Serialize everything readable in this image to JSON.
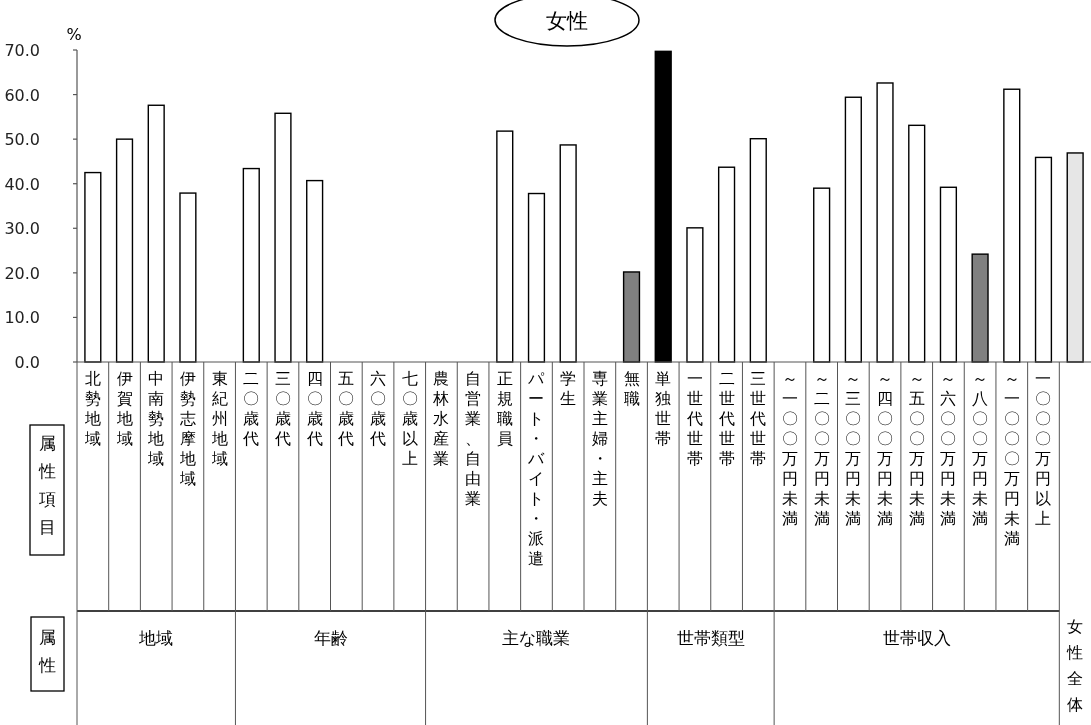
{
  "chart_data": {
    "type": "bar",
    "title": "女性",
    "ylabel": "%",
    "categories": [
      "北勢地域",
      "伊賀地域",
      "中南勢地域",
      "伊勢志摩地域",
      "東紀州地域",
      "二〇歳代",
      "三〇歳代",
      "四〇歳代",
      "五〇歳代",
      "六〇歳代",
      "七〇歳以上",
      "農林水産業",
      "自営業、自由業",
      "正規職員",
      "パート・バイト・派遣",
      "学生",
      "専業主婦・主夫",
      "無職",
      "単独世帯",
      "一世代世帯",
      "二世代世帯",
      "三世代世帯",
      "～一〇〇万円未満",
      "～二〇〇万円未満",
      "～三〇〇万円未満",
      "～四〇〇万円未満",
      "～五〇〇万円未満",
      "～六〇〇万円未満",
      "～八〇〇万円未満",
      "～一〇〇〇万円未満",
      "一〇〇〇万円以上",
      null
    ],
    "values": [
      42.5,
      50.0,
      57.6,
      37.9,
      null,
      43.4,
      55.8,
      40.7,
      null,
      null,
      null,
      null,
      null,
      51.8,
      37.8,
      48.7,
      null,
      20.2,
      69.7,
      30.1,
      43.7,
      50.1,
      null,
      39.0,
      59.4,
      62.6,
      53.1,
      39.2,
      24.2,
      61.2,
      45.9,
      46.9
    ],
    "colors": [
      "#ffffff",
      "#ffffff",
      "#ffffff",
      "#ffffff",
      "#ffffff",
      "#ffffff",
      "#ffffff",
      "#ffffff",
      "#ffffff",
      "#ffffff",
      "#ffffff",
      "#ffffff",
      "#ffffff",
      "#ffffff",
      "#ffffff",
      "#ffffff",
      "#ffffff",
      "#808080",
      "#000000",
      "#ffffff",
      "#ffffff",
      "#ffffff",
      "#ffffff",
      "#ffffff",
      "#ffffff",
      "#ffffff",
      "#ffffff",
      "#ffffff",
      "#808080",
      "#ffffff",
      "#ffffff",
      "#e6e6e6"
    ],
    "ylim": [
      0,
      70
    ],
    "yticks": [
      {
        "value": 0,
        "label": "0.0"
      },
      {
        "value": 10,
        "label": "10.0"
      },
      {
        "value": 20,
        "label": "20.0"
      },
      {
        "value": 30,
        "label": "30.0"
      },
      {
        "value": 40,
        "label": "40.0"
      },
      {
        "value": 50,
        "label": "50.0"
      },
      {
        "value": 60,
        "label": "60.0"
      },
      {
        "value": 70,
        "label": "70.0"
      }
    ],
    "annotations": [
      "属性項目",
      "属性",
      "地域",
      "年齢",
      "主な職業",
      "世帯類型",
      "世帯収入",
      "女性全体"
    ]
  }
}
